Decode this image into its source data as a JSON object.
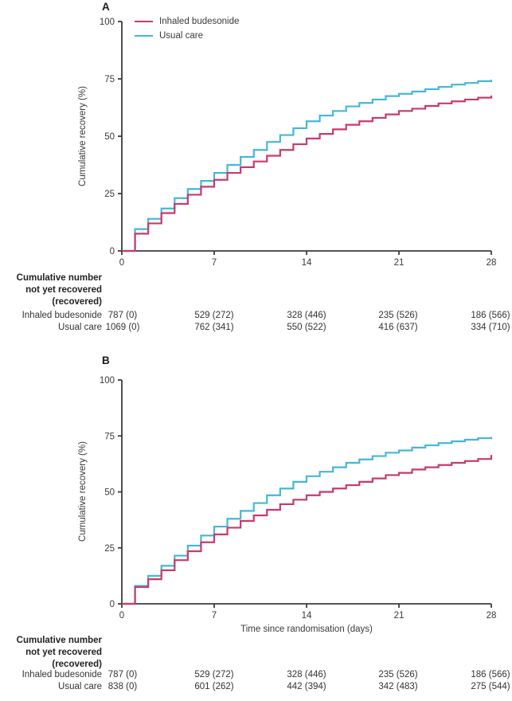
{
  "colors": {
    "inhaled_budesonide": "#c73a6e",
    "usual_care": "#45b7d8",
    "axis": "#3d3d3d",
    "text": "#3a3a3a"
  },
  "risk_table_header": [
    "Cumulative number",
    "not yet recovered",
    "(recovered)"
  ],
  "chart_data": [
    {
      "type": "line",
      "step": true,
      "panel_label": "A",
      "xlabel": "",
      "ylabel": "Cumulative recovery (%)",
      "xlim": [
        0,
        28
      ],
      "ylim": [
        0,
        100
      ],
      "xticks": [
        0,
        7,
        14,
        21,
        28
      ],
      "yticks": [
        0,
        25,
        50,
        75,
        100
      ],
      "grid": false,
      "legend_position": "top-left-inside",
      "legend_visible": true,
      "x_days": [
        0,
        1,
        2,
        3,
        4,
        5,
        6,
        7,
        8,
        9,
        10,
        11,
        12,
        13,
        14,
        15,
        16,
        17,
        18,
        19,
        20,
        21,
        22,
        23,
        24,
        25,
        26,
        27,
        28
      ],
      "series": [
        {
          "name": "Inhaled budesonide",
          "color_key": "inhaled_budesonide",
          "values_pct_by_day": [
            0,
            7.5,
            12,
            16.5,
            20.5,
            24.5,
            28,
            31,
            34,
            36.5,
            39,
            41.5,
            44,
            46.5,
            49,
            51,
            53,
            55,
            56.5,
            58,
            59.5,
            61,
            62,
            63.2,
            64.3,
            65.2,
            66,
            66.8,
            67.7
          ]
        },
        {
          "name": "Usual care",
          "color_key": "usual_care",
          "values_pct_by_day": [
            0,
            9.5,
            14,
            18.5,
            23,
            27,
            30.5,
            34,
            37.5,
            41,
            44,
            47.5,
            50.5,
            53.5,
            56.5,
            59,
            61,
            63,
            64.5,
            66,
            67.5,
            68.5,
            69.5,
            70.5,
            71.5,
            72.5,
            73.2,
            74,
            74.6
          ]
        }
      ],
      "risk_table": {
        "rows": [
          {
            "label": "Inhaled budesonide",
            "values": [
              "787 (0)",
              "529 (272)",
              "328 (446)",
              "235 (526)",
              "186 (566)"
            ]
          },
          {
            "label": "Usual care",
            "values": [
              "1069 (0)",
              "762 (341)",
              "550 (522)",
              "416 (637)",
              "334 (710)"
            ]
          }
        ]
      }
    },
    {
      "type": "line",
      "step": true,
      "panel_label": "B",
      "xlabel": "Time since randomisation (days)",
      "ylabel": "Cumulative recovery (%)",
      "xlim": [
        0,
        28
      ],
      "ylim": [
        0,
        100
      ],
      "xticks": [
        0,
        7,
        14,
        21,
        28
      ],
      "yticks": [
        0,
        25,
        50,
        75,
        100
      ],
      "grid": false,
      "legend_position": "none",
      "legend_visible": false,
      "x_days": [
        0,
        1,
        2,
        3,
        4,
        5,
        6,
        7,
        8,
        9,
        10,
        11,
        12,
        13,
        14,
        15,
        16,
        17,
        18,
        19,
        20,
        21,
        22,
        23,
        24,
        25,
        26,
        27,
        28
      ],
      "series": [
        {
          "name": "Inhaled budesonide",
          "color_key": "inhaled_budesonide",
          "values_pct_by_day": [
            0,
            7.5,
            11,
            15,
            19.5,
            23.5,
            27.5,
            31,
            34,
            37,
            39.5,
            42,
            44.5,
            46.5,
            48.5,
            50,
            51.5,
            53,
            54.5,
            56,
            57.5,
            58.5,
            60,
            61,
            62,
            63,
            63.8,
            64.7,
            66.5
          ]
        },
        {
          "name": "Usual care",
          "color_key": "usual_care",
          "values_pct_by_day": [
            0,
            8,
            12.5,
            17,
            21.5,
            26,
            30.5,
            34.5,
            38,
            41.5,
            45,
            48.5,
            51.5,
            54.5,
            57,
            59,
            61,
            63,
            64.5,
            66,
            67.5,
            68.5,
            69.8,
            70.8,
            71.8,
            72.6,
            73.3,
            74,
            74.6
          ]
        }
      ],
      "risk_table": {
        "rows": [
          {
            "label": "Inhaled budesonide",
            "values": [
              "787 (0)",
              "529 (272)",
              "328 (446)",
              "235 (526)",
              "186 (566)"
            ]
          },
          {
            "label": "Usual care",
            "values": [
              "838 (0)",
              "601 (262)",
              "442 (394)",
              "342 (483)",
              "275 (544)"
            ]
          }
        ]
      }
    }
  ]
}
